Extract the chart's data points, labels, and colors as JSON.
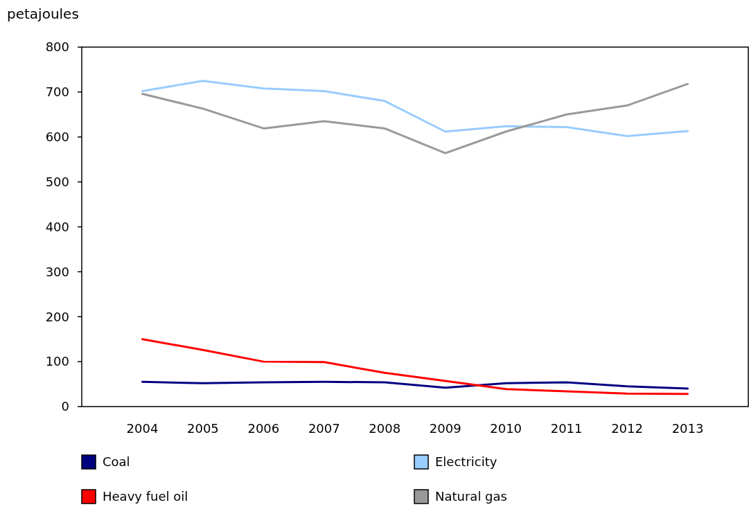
{
  "chart_data": {
    "type": "line",
    "ylabel": "petajoules",
    "categories": [
      "2004",
      "2005",
      "2006",
      "2007",
      "2008",
      "2009",
      "2010",
      "2011",
      "2012",
      "2013"
    ],
    "series": [
      {
        "name": "Coal",
        "color": "#000080",
        "values": [
          55,
          52,
          54,
          55,
          54,
          42,
          52,
          54,
          45,
          40
        ]
      },
      {
        "name": "Electricity",
        "color": "#99ccff",
        "values": [
          702,
          725,
          708,
          702,
          680,
          612,
          624,
          622,
          602,
          613
        ]
      },
      {
        "name": "Heavy fuel oil",
        "color": "#ff0000",
        "values": [
          150,
          126,
          100,
          99,
          75,
          57,
          39,
          34,
          29,
          28
        ]
      },
      {
        "name": "Natural gas",
        "color": "#999999",
        "values": [
          696,
          663,
          619,
          635,
          619,
          564,
          612,
          650,
          670,
          718
        ]
      }
    ],
    "ylim": [
      0,
      800
    ],
    "yticks": [
      0,
      100,
      200,
      300,
      400,
      500,
      600,
      700,
      800
    ],
    "grid": false,
    "legend": "bottom",
    "marker": "none",
    "line_style": "solid"
  }
}
